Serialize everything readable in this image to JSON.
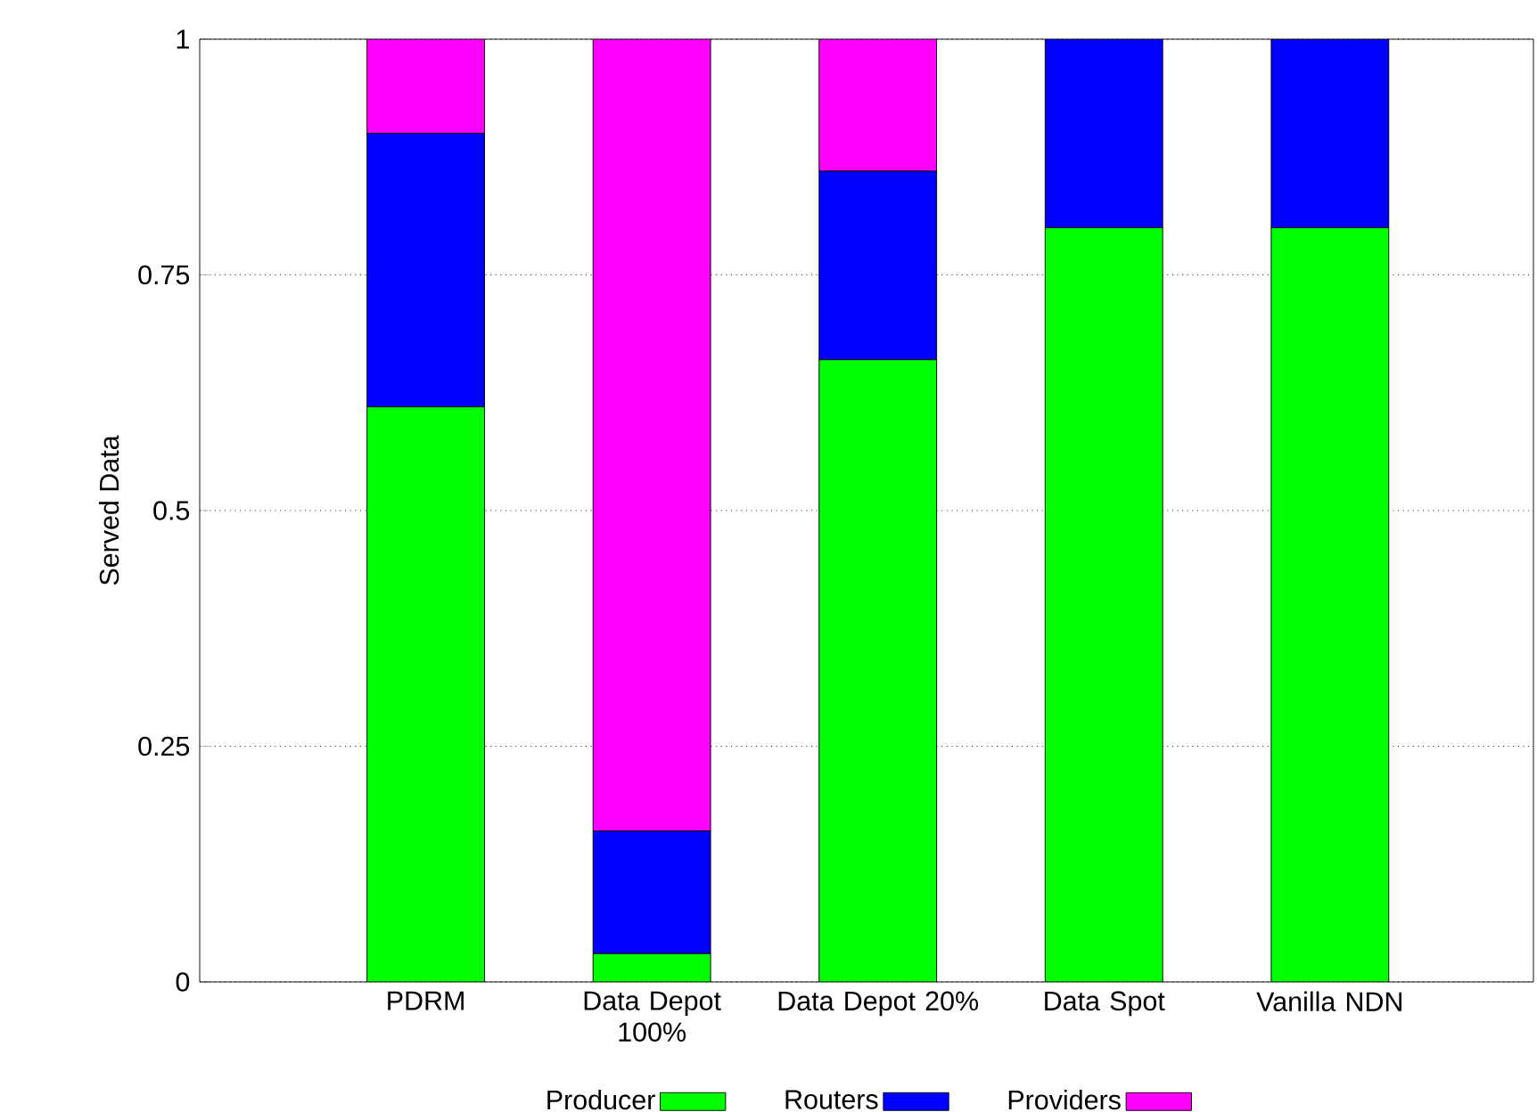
{
  "chart_data": {
    "type": "bar",
    "stacked": true,
    "ylabel": "Served Data",
    "categories": [
      "PDRM",
      "Data Depot 100%",
      "Data Depot 20%",
      "Data Spot",
      "Vanilla NDN"
    ],
    "series": [
      {
        "name": "Producer",
        "color": "#00ff00",
        "values": [
          0.61,
          0.03,
          0.66,
          0.8,
          0.8
        ]
      },
      {
        "name": "Routers",
        "color": "#0000ff",
        "values": [
          0.29,
          0.13,
          0.2,
          0.2,
          0.2
        ]
      },
      {
        "name": "Providers",
        "color": "#ff00ff",
        "values": [
          0.1,
          0.84,
          0.14,
          0,
          0
        ]
      }
    ],
    "ylim": [
      0,
      1
    ],
    "yticks": [
      0,
      {
        "value": 0.25,
        "label": "0.25"
      },
      {
        "value": 0.5,
        "label": "0.5"
      },
      {
        "value": 0.75,
        "label": "0.75"
      },
      1
    ],
    "grid": "y",
    "legend": "bottom"
  }
}
